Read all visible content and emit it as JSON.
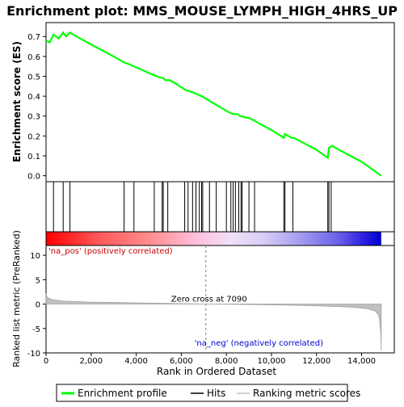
{
  "chart_data": {
    "type": "line",
    "title": "Enrichment plot: MMS_MOUSE_LYMPH_HIGH_4HRS_UP",
    "es_panel": {
      "ylabel": "Enrichment score (ES)",
      "ylim": [
        -0.03,
        0.77
      ],
      "yticks": [
        "0.0",
        "0.1",
        "0.2",
        "0.3",
        "0.4",
        "0.5",
        "0.6",
        "0.7"
      ],
      "yticks_values": [
        0.0,
        0.1,
        0.2,
        0.3,
        0.4,
        0.5,
        0.6,
        0.7
      ],
      "line_color": "#00ff00",
      "series": [
        {
          "name": "Enrichment profile",
          "x": [
            0,
            160,
            330,
            560,
            760,
            880,
            1060,
            1200,
            2000,
            3000,
            3460,
            3700,
            3900,
            4100,
            4500,
            4900,
            5200,
            5300,
            5500,
            5800,
            6200,
            6500,
            6700,
            6900,
            7200,
            7500,
            7800,
            8100,
            8300,
            8500,
            8600,
            9000,
            9200,
            9500,
            10000,
            10550,
            10600,
            10900,
            11000,
            11500,
            12000,
            12500,
            12550,
            12700,
            13000,
            13500,
            14000,
            14500,
            14870
          ],
          "y": [
            0.68,
            0.67,
            0.71,
            0.69,
            0.72,
            0.7,
            0.72,
            0.71,
            0.66,
            0.6,
            0.57,
            0.56,
            0.55,
            0.54,
            0.52,
            0.5,
            0.49,
            0.48,
            0.48,
            0.46,
            0.43,
            0.42,
            0.41,
            0.4,
            0.38,
            0.36,
            0.34,
            0.32,
            0.31,
            0.31,
            0.3,
            0.29,
            0.28,
            0.26,
            0.23,
            0.19,
            0.21,
            0.19,
            0.19,
            0.16,
            0.13,
            0.09,
            0.14,
            0.15,
            0.13,
            0.1,
            0.07,
            0.03,
            0.0
          ]
        }
      ]
    },
    "hits": [
      330,
      760,
      1060,
      3460,
      3900,
      4800,
      5150,
      5200,
      5400,
      6150,
      6300,
      6500,
      6650,
      6800,
      6900,
      6950,
      7250,
      7550,
      8000,
      8200,
      8300,
      8400,
      8550,
      8650,
      8700,
      9000,
      9250,
      10550,
      10600,
      10950,
      12500,
      12550,
      12650
    ],
    "ranking_panel": {
      "ylabel": "Ranked list metric (PreRanked)",
      "ylim": [
        -10,
        12
      ],
      "yticks": [
        "10",
        "5",
        "0",
        "-5",
        "-10"
      ],
      "yticks_values": [
        10,
        5,
        0,
        -5,
        -10
      ],
      "profile": {
        "x": [
          0,
          30,
          100,
          300,
          800,
          2000,
          4000,
          7090,
          10000,
          12000,
          13500,
          14200,
          14600,
          14750,
          14800,
          14850,
          14870
        ],
        "y": [
          2.2,
          1.6,
          1.2,
          0.9,
          0.6,
          0.4,
          0.25,
          0.0,
          -0.15,
          -0.35,
          -0.6,
          -0.9,
          -1.4,
          -2.2,
          -3.5,
          -6.0,
          -9.5
        ]
      },
      "zero_cross_label": "Zero cross at 7090",
      "zero_cross": 7090,
      "pos_label": "'na_pos' (positively correlated)",
      "neg_label": "'na_neg' (negatively correlated)"
    },
    "xaxis": {
      "xlabel": "Rank in Ordered Dataset",
      "xlim": [
        0,
        15450
      ],
      "xticks": [
        "0",
        "2,000",
        "4,000",
        "6,000",
        "8,000",
        "10,000",
        "12,000",
        "14,000"
      ],
      "xticks_values": [
        0,
        2000,
        4000,
        6000,
        8000,
        10000,
        12000,
        14000
      ],
      "n_genes": 14870
    },
    "legend": {
      "placement": "bottom",
      "items": [
        {
          "label": "Enrichment profile",
          "color": "#00ff00"
        },
        {
          "label": "Hits",
          "color": "#000000"
        },
        {
          "label": "Ranking metric scores",
          "color": "#c0c0c0"
        }
      ]
    }
  }
}
